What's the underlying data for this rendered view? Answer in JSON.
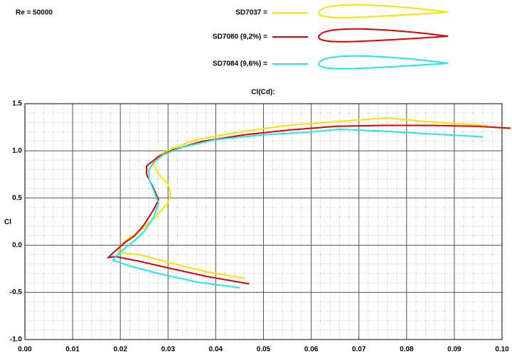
{
  "chart_data": {
    "type": "line",
    "title": "Cl(Cd):",
    "annotation": "Re = 50000",
    "y_label": "Cl",
    "xlim": [
      0,
      0.1
    ],
    "ylim": [
      -1,
      1.5
    ],
    "xticks": [
      {
        "value": 0,
        "label": "0.00"
      },
      {
        "value": 0.01,
        "label": "0.01"
      },
      {
        "value": 0.02,
        "label": "0.02"
      },
      {
        "value": 0.03,
        "label": "0.03"
      },
      {
        "value": 0.04,
        "label": "0.04"
      },
      {
        "value": 0.05,
        "label": "0.05"
      },
      {
        "value": 0.06,
        "label": "0.06"
      },
      {
        "value": 0.07,
        "label": "0.07"
      },
      {
        "value": 0.08,
        "label": "0.08"
      },
      {
        "value": 0.09,
        "label": "0.09"
      },
      {
        "value": 0.1,
        "label": "0.10"
      }
    ],
    "yticks": [
      {
        "value": -1,
        "label": "-1.0"
      },
      -0.5,
      {
        "value": 0,
        "label": "0.0"
      },
      0.5,
      {
        "value": 1,
        "label": "1.0"
      },
      1.5
    ],
    "grid": true,
    "series": [
      {
        "name": "SD7037 =",
        "color": "#ffe000",
        "x": [
          0.046,
          0.038,
          0.03,
          0.024,
          0.02,
          0.0195,
          0.021,
          0.024,
          0.027,
          0.03,
          0.0305,
          0.03,
          0.028,
          0.027,
          0.028,
          0.031,
          0.036,
          0.045,
          0.055,
          0.065,
          0.076,
          0.082,
          0.09,
          0.097
        ],
        "values": [
          -0.35,
          -0.28,
          -0.18,
          -0.1,
          -0.08,
          -0.05,
          0.05,
          0.15,
          0.28,
          0.45,
          0.55,
          0.65,
          0.75,
          0.85,
          0.95,
          1.03,
          1.12,
          1.2,
          1.27,
          1.31,
          1.35,
          1.32,
          1.29,
          1.27
        ]
      },
      {
        "name": "SD7080 (9,2%) =",
        "color": "#e00000",
        "x": [
          0.047,
          0.038,
          0.03,
          0.024,
          0.019,
          0.0175,
          0.0185,
          0.021,
          0.023,
          0.025,
          0.027,
          0.028,
          0.027,
          0.0255,
          0.0255,
          0.028,
          0.031,
          0.037,
          0.046,
          0.055,
          0.065,
          0.075,
          0.085,
          0.095,
          0.1018
        ],
        "values": [
          -0.41,
          -0.33,
          -0.24,
          -0.17,
          -0.12,
          -0.13,
          -0.08,
          0.03,
          0.1,
          0.22,
          0.38,
          0.48,
          0.6,
          0.75,
          0.84,
          0.94,
          1.01,
          1.1,
          1.17,
          1.22,
          1.26,
          1.27,
          1.27,
          1.26,
          1.24
        ]
      },
      {
        "name": "SD7084 (9,6%) =",
        "color": "#20e8e8",
        "x": [
          0.045,
          0.036,
          0.028,
          0.022,
          0.0185,
          0.019,
          0.021,
          0.023,
          0.025,
          0.027,
          0.028,
          0.027,
          0.026,
          0.026,
          0.027,
          0.029,
          0.033,
          0.04,
          0.05,
          0.06,
          0.066,
          0.075,
          0.085,
          0.096
        ],
        "values": [
          -0.45,
          -0.39,
          -0.3,
          -0.22,
          -0.16,
          -0.12,
          -0.03,
          0.05,
          0.15,
          0.3,
          0.45,
          0.58,
          0.7,
          0.8,
          0.88,
          0.96,
          1.04,
          1.12,
          1.17,
          1.2,
          1.23,
          1.21,
          1.18,
          1.15
        ]
      }
    ]
  }
}
